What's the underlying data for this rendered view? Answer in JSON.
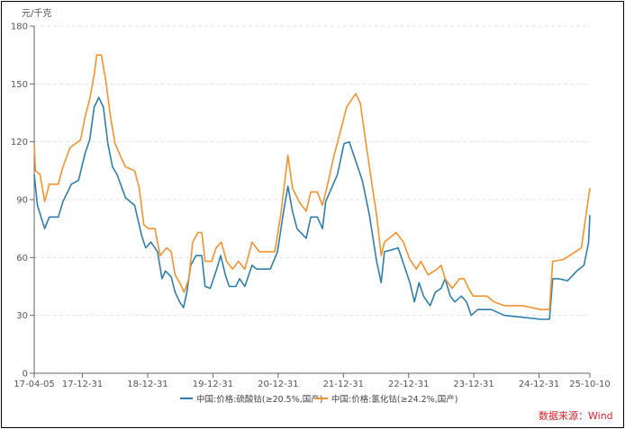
{
  "chart_data": {
    "type": "line",
    "title": "",
    "ylabel": "元/千克",
    "xlabel": "",
    "ylim": [
      0,
      180
    ],
    "yticks": [
      0,
      30,
      60,
      90,
      120,
      150,
      180
    ],
    "xlim": [
      2017.26,
      2025.78
    ],
    "xticks": [
      {
        "label": "17-04-05",
        "x": 2017.26
      },
      {
        "label": "17-12-31",
        "x": 2018.0
      },
      {
        "label": "18-12-31",
        "x": 2019.0
      },
      {
        "label": "19-12-31",
        "x": 2020.0
      },
      {
        "label": "20-12-31",
        "x": 2021.0
      },
      {
        "label": "21-12-31",
        "x": 2022.0
      },
      {
        "label": "22-12-31",
        "x": 2023.0
      },
      {
        "label": "23-12-31",
        "x": 2024.0
      },
      {
        "label": "24-12-31",
        "x": 2025.0
      },
      {
        "label": "25-10-10",
        "x": 2025.78
      }
    ],
    "grid": true,
    "legend_position": "bottom",
    "series": [
      {
        "name": "中国:价格:硫酸钴(≥20.5%,国产)",
        "color": "#2e7fb0",
        "points": [
          [
            2017.26,
            103
          ],
          [
            2017.31,
            87
          ],
          [
            2017.42,
            75
          ],
          [
            2017.49,
            81
          ],
          [
            2017.63,
            81
          ],
          [
            2017.7,
            89
          ],
          [
            2017.83,
            98
          ],
          [
            2017.94,
            100
          ],
          [
            2018.04,
            114
          ],
          [
            2018.11,
            121
          ],
          [
            2018.18,
            138
          ],
          [
            2018.25,
            143
          ],
          [
            2018.32,
            138
          ],
          [
            2018.39,
            119
          ],
          [
            2018.46,
            107
          ],
          [
            2018.53,
            103
          ],
          [
            2018.66,
            91
          ],
          [
            2018.8,
            87
          ],
          [
            2018.91,
            71
          ],
          [
            2018.97,
            65
          ],
          [
            2019.05,
            68
          ],
          [
            2019.15,
            63
          ],
          [
            2019.22,
            49
          ],
          [
            2019.27,
            53
          ],
          [
            2019.36,
            50
          ],
          [
            2019.42,
            42
          ],
          [
            2019.49,
            37
          ],
          [
            2019.55,
            34
          ],
          [
            2019.6,
            42
          ],
          [
            2019.66,
            56
          ],
          [
            2019.74,
            61
          ],
          [
            2019.83,
            61
          ],
          [
            2019.88,
            45
          ],
          [
            2019.96,
            44
          ],
          [
            2020.05,
            53
          ],
          [
            2020.12,
            61
          ],
          [
            2020.19,
            51
          ],
          [
            2020.25,
            45
          ],
          [
            2020.35,
            45
          ],
          [
            2020.41,
            49
          ],
          [
            2020.49,
            45
          ],
          [
            2020.6,
            56
          ],
          [
            2020.67,
            54
          ],
          [
            2020.88,
            54
          ],
          [
            2020.99,
            63
          ],
          [
            2021.08,
            83
          ],
          [
            2021.15,
            97
          ],
          [
            2021.22,
            84
          ],
          [
            2021.29,
            75
          ],
          [
            2021.43,
            70
          ],
          [
            2021.5,
            81
          ],
          [
            2021.6,
            81
          ],
          [
            2021.68,
            75
          ],
          [
            2021.73,
            89
          ],
          [
            2021.82,
            96
          ],
          [
            2021.91,
            103
          ],
          [
            2022.01,
            119
          ],
          [
            2022.09,
            120
          ],
          [
            2022.15,
            114
          ],
          [
            2022.22,
            107
          ],
          [
            2022.29,
            100
          ],
          [
            2022.4,
            82
          ],
          [
            2022.51,
            58
          ],
          [
            2022.58,
            47
          ],
          [
            2022.63,
            63
          ],
          [
            2022.74,
            64
          ],
          [
            2022.84,
            65
          ],
          [
            2022.91,
            58
          ],
          [
            2023.02,
            47
          ],
          [
            2023.09,
            37
          ],
          [
            2023.16,
            47
          ],
          [
            2023.23,
            40
          ],
          [
            2023.33,
            35
          ],
          [
            2023.41,
            42
          ],
          [
            2023.5,
            44
          ],
          [
            2023.56,
            49
          ],
          [
            2023.64,
            40
          ],
          [
            2023.71,
            37
          ],
          [
            2023.81,
            40
          ],
          [
            2023.89,
            37
          ],
          [
            2023.96,
            30
          ],
          [
            2024.06,
            33
          ],
          [
            2024.27,
            33
          ],
          [
            2024.47,
            30
          ],
          [
            2024.75,
            29
          ],
          [
            2025.03,
            28
          ],
          [
            2025.16,
            28
          ],
          [
            2025.21,
            49
          ],
          [
            2025.3,
            49
          ],
          [
            2025.44,
            48
          ],
          [
            2025.58,
            53
          ],
          [
            2025.69,
            56
          ],
          [
            2025.76,
            68
          ],
          [
            2025.78,
            82
          ]
        ]
      },
      {
        "name": "中国:价格:氯化钴(≥24.2%,国产)",
        "color": "#f7922b",
        "points": [
          [
            2017.26,
            119
          ],
          [
            2017.28,
            105
          ],
          [
            2017.35,
            103
          ],
          [
            2017.42,
            89
          ],
          [
            2017.49,
            98
          ],
          [
            2017.63,
            98
          ],
          [
            2017.7,
            107
          ],
          [
            2017.81,
            117
          ],
          [
            2017.97,
            121
          ],
          [
            2018.04,
            133
          ],
          [
            2018.11,
            142
          ],
          [
            2018.18,
            155
          ],
          [
            2018.22,
            165
          ],
          [
            2018.29,
            165
          ],
          [
            2018.36,
            151
          ],
          [
            2018.43,
            133
          ],
          [
            2018.5,
            119
          ],
          [
            2018.59,
            112
          ],
          [
            2018.66,
            107
          ],
          [
            2018.8,
            105
          ],
          [
            2018.87,
            96
          ],
          [
            2018.94,
            77
          ],
          [
            2019.01,
            75
          ],
          [
            2019.11,
            75
          ],
          [
            2019.19,
            61
          ],
          [
            2019.29,
            65
          ],
          [
            2019.36,
            63
          ],
          [
            2019.42,
            51
          ],
          [
            2019.49,
            47
          ],
          [
            2019.56,
            42
          ],
          [
            2019.63,
            49
          ],
          [
            2019.69,
            68
          ],
          [
            2019.77,
            73
          ],
          [
            2019.83,
            73
          ],
          [
            2019.88,
            58
          ],
          [
            2019.98,
            58
          ],
          [
            2020.05,
            65
          ],
          [
            2020.13,
            68
          ],
          [
            2020.21,
            58
          ],
          [
            2020.3,
            54
          ],
          [
            2020.39,
            58
          ],
          [
            2020.49,
            54
          ],
          [
            2020.6,
            68
          ],
          [
            2020.71,
            63
          ],
          [
            2020.95,
            63
          ],
          [
            2021.04,
            82
          ],
          [
            2021.15,
            113
          ],
          [
            2021.22,
            96
          ],
          [
            2021.32,
            89
          ],
          [
            2021.43,
            84
          ],
          [
            2021.5,
            94
          ],
          [
            2021.6,
            94
          ],
          [
            2021.68,
            87
          ],
          [
            2021.78,
            101
          ],
          [
            2021.85,
            112
          ],
          [
            2021.96,
            126
          ],
          [
            2022.05,
            138
          ],
          [
            2022.19,
            145
          ],
          [
            2022.26,
            140
          ],
          [
            2022.33,
            123
          ],
          [
            2022.43,
            100
          ],
          [
            2022.51,
            82
          ],
          [
            2022.58,
            61
          ],
          [
            2022.63,
            68
          ],
          [
            2022.81,
            73
          ],
          [
            2022.92,
            68
          ],
          [
            2023.02,
            59
          ],
          [
            2023.12,
            54
          ],
          [
            2023.19,
            58
          ],
          [
            2023.3,
            51
          ],
          [
            2023.44,
            54
          ],
          [
            2023.5,
            56
          ],
          [
            2023.56,
            49
          ],
          [
            2023.67,
            44
          ],
          [
            2023.78,
            49
          ],
          [
            2023.85,
            49
          ],
          [
            2023.92,
            44
          ],
          [
            2023.99,
            40
          ],
          [
            2024.2,
            40
          ],
          [
            2024.31,
            37
          ],
          [
            2024.47,
            35
          ],
          [
            2024.75,
            35
          ],
          [
            2025.03,
            33
          ],
          [
            2025.16,
            33
          ],
          [
            2025.21,
            58
          ],
          [
            2025.37,
            59
          ],
          [
            2025.47,
            61
          ],
          [
            2025.65,
            65
          ],
          [
            2025.72,
            82
          ],
          [
            2025.78,
            96
          ]
        ]
      }
    ]
  },
  "source": "数据来源：Wind"
}
